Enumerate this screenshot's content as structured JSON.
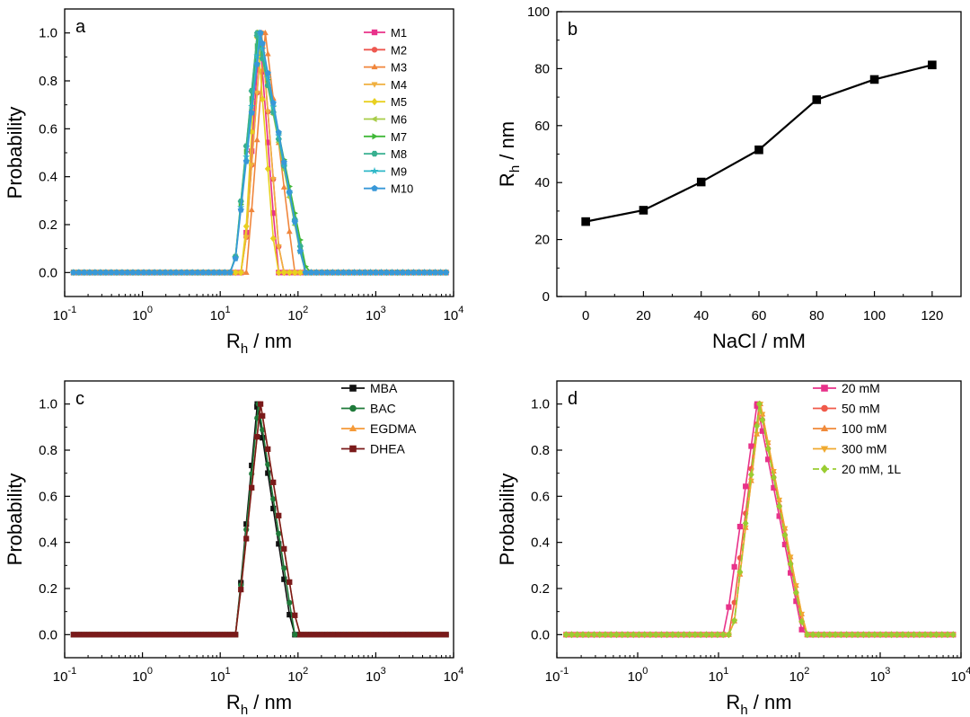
{
  "palette": {
    "M1": "#e8328a",
    "M2": "#ee5850",
    "M3": "#f0863c",
    "M4": "#f0b040",
    "M5": "#e8d020",
    "M6": "#a8cc48",
    "M7": "#40b838",
    "M8": "#38b090",
    "M9": "#30b8c8",
    "M10": "#3898d8",
    "MBA": "#111111",
    "BAC": "#1f7a3a",
    "EGDMA": "#f59a38",
    "DHEA": "#7a1a1a",
    "mM20": "#e8328a",
    "mM50": "#f05a4a",
    "mM100": "#f08a3a",
    "mM300": "#f0aa30",
    "mM20_1L": "#9acd32"
  },
  "chart_data": [
    {
      "id": "a",
      "panel_label": "a",
      "type": "line",
      "xscale": "log",
      "xlabel": "R",
      "xlabel_sub": "h",
      "xlabel_unit": " / nm",
      "ylabel": "Probability",
      "xlim": [
        0.1,
        10000
      ],
      "ylim": [
        -0.1,
        1.1
      ],
      "xticks": [
        0.1,
        1,
        10,
        100,
        1000,
        10000
      ],
      "xtick_labels": [
        [
          "10",
          "-1"
        ],
        [
          "10",
          "0"
        ],
        [
          "10",
          "1"
        ],
        [
          "10",
          "2"
        ],
        [
          "10",
          "3"
        ],
        [
          "10",
          "4"
        ]
      ],
      "yticks": [
        0,
        0.2,
        0.4,
        0.6,
        0.8,
        1.0
      ],
      "ytick_labels": [
        "0.0",
        "0.2",
        "0.4",
        "0.6",
        "0.8",
        "1.0"
      ],
      "legend_position": "top-right",
      "series": [
        {
          "name": "M1",
          "color_key": "M1",
          "marker": "square",
          "dist": {
            "lo": 20,
            "hi": 55,
            "peak": 32,
            "pv": 1.0
          }
        },
        {
          "name": "M2",
          "color_key": "M2",
          "marker": "circle",
          "dist": {
            "lo": 20,
            "hi": 60,
            "peak": 34,
            "pv": 1.0
          }
        },
        {
          "name": "M3",
          "color_key": "M3",
          "marker": "triangle-up",
          "dist": {
            "lo": 22,
            "hi": 90,
            "peak": 38,
            "pv": 1.0
          }
        },
        {
          "name": "M4",
          "color_key": "M4",
          "marker": "triangle-down",
          "dist": {
            "lo": 20,
            "hi": 60,
            "peak": 34,
            "pv": 1.0
          }
        },
        {
          "name": "M5",
          "color_key": "M5",
          "marker": "diamond",
          "dist": {
            "lo": 20,
            "hi": 52,
            "peak": 30,
            "pv": 1.0
          }
        },
        {
          "name": "M6",
          "color_key": "M6",
          "marker": "triangle-left",
          "dist": {
            "lo": 15,
            "hi": 120,
            "peak": 30,
            "pv": 1.0
          }
        },
        {
          "name": "M7",
          "color_key": "M7",
          "marker": "triangle-right",
          "dist": {
            "lo": 15,
            "hi": 130,
            "peak": 31,
            "pv": 1.0
          }
        },
        {
          "name": "M8",
          "color_key": "M8",
          "marker": "hexagon",
          "dist": {
            "lo": 15,
            "hi": 125,
            "peak": 30,
            "pv": 1.0
          }
        },
        {
          "name": "M9",
          "color_key": "M9",
          "marker": "star",
          "dist": {
            "lo": 15,
            "hi": 120,
            "peak": 32,
            "pv": 1.0
          }
        },
        {
          "name": "M10",
          "color_key": "M10",
          "marker": "pentagon",
          "dist": {
            "lo": 15,
            "hi": 120,
            "peak": 33,
            "pv": 1.0
          }
        }
      ]
    },
    {
      "id": "b",
      "panel_label": "b",
      "type": "line",
      "xscale": "linear",
      "xlabel": "NaCl / mM",
      "ylabel": "R",
      "ylabel_sub": "h",
      "ylabel_unit": " / nm",
      "xlim": [
        -10,
        130
      ],
      "ylim": [
        0,
        100
      ],
      "xticks": [
        0,
        20,
        40,
        60,
        80,
        100,
        120
      ],
      "xtick_labels": [
        "0",
        "20",
        "40",
        "60",
        "80",
        "100",
        "120"
      ],
      "yticks": [
        0,
        20,
        40,
        60,
        80,
        100
      ],
      "ytick_labels": [
        "0",
        "20",
        "40",
        "60",
        "80",
        "100"
      ],
      "series": [
        {
          "name": "",
          "color": "#000000",
          "marker": "square",
          "x": [
            0,
            20,
            40,
            60,
            80,
            100,
            120
          ],
          "y": [
            26.3,
            30.3,
            40.2,
            51.5,
            69.1,
            76.2,
            81.3
          ]
        }
      ]
    },
    {
      "id": "c",
      "panel_label": "c",
      "type": "line",
      "xscale": "log",
      "xlabel": "R",
      "xlabel_sub": "h",
      "xlabel_unit": " / nm",
      "ylabel": "Probability",
      "xlim": [
        0.1,
        10000
      ],
      "ylim": [
        -0.1,
        1.1
      ],
      "xticks": [
        0.1,
        1,
        10,
        100,
        1000,
        10000
      ],
      "xtick_labels": [
        [
          "10",
          "-1"
        ],
        [
          "10",
          "0"
        ],
        [
          "10",
          "1"
        ],
        [
          "10",
          "2"
        ],
        [
          "10",
          "3"
        ],
        [
          "10",
          "4"
        ]
      ],
      "yticks": [
        0,
        0.2,
        0.4,
        0.6,
        0.8,
        1.0
      ],
      "ytick_labels": [
        "0.0",
        "0.2",
        "0.4",
        "0.6",
        "0.8",
        "1.0"
      ],
      "legend_position": "top-right",
      "series": [
        {
          "name": "MBA",
          "color_key": "MBA",
          "marker": "square",
          "dist": {
            "lo": 16,
            "hi": 85,
            "peak": 30,
            "pv": 1.0
          }
        },
        {
          "name": "BAC",
          "color_key": "BAC",
          "marker": "circle",
          "dist": {
            "lo": 16,
            "hi": 90,
            "peak": 31,
            "pv": 1.0
          }
        },
        {
          "name": "EGDMA",
          "color_key": "EGDMA",
          "marker": "triangle-up",
          "dist": {
            "lo": 16,
            "hi": 100,
            "peak": 33,
            "pv": 1.0
          }
        },
        {
          "name": "DHEA",
          "color_key": "DHEA",
          "marker": "square",
          "dist": {
            "lo": 16,
            "hi": 100,
            "peak": 33,
            "pv": 1.0
          }
        }
      ]
    },
    {
      "id": "d",
      "panel_label": "d",
      "type": "line",
      "xscale": "log",
      "xlabel": "R",
      "xlabel_sub": "h",
      "xlabel_unit": " / nm",
      "ylabel": "Probability",
      "xlim": [
        0.1,
        10000
      ],
      "ylim": [
        -0.1,
        1.1
      ],
      "xticks": [
        0.1,
        1,
        10,
        100,
        1000,
        10000
      ],
      "xtick_labels": [
        [
          "10",
          "-1"
        ],
        [
          "10",
          "0"
        ],
        [
          "10",
          "1"
        ],
        [
          "10",
          "2"
        ],
        [
          "10",
          "3"
        ],
        [
          "10",
          "4"
        ]
      ],
      "yticks": [
        0,
        0.2,
        0.4,
        0.6,
        0.8,
        1.0
      ],
      "ytick_labels": [
        "0.0",
        "0.2",
        "0.4",
        "0.6",
        "0.8",
        "1.0"
      ],
      "legend_position": "top-right",
      "series": [
        {
          "name": "20 mM",
          "color_key": "mM20",
          "marker": "square",
          "dist": {
            "lo": 12,
            "hi": 110,
            "peak": 30,
            "pv": 1.0
          }
        },
        {
          "name": "50 mM",
          "color_key": "mM50",
          "marker": "circle",
          "dist": {
            "lo": 14,
            "hi": 115,
            "peak": 32,
            "pv": 1.0
          }
        },
        {
          "name": "100 mM",
          "color_key": "mM100",
          "marker": "triangle-up",
          "dist": {
            "lo": 15,
            "hi": 120,
            "peak": 33,
            "pv": 1.0
          }
        },
        {
          "name": "300 mM",
          "color_key": "mM300",
          "marker": "triangle-down",
          "dist": {
            "lo": 15,
            "hi": 120,
            "peak": 33,
            "pv": 1.0
          }
        },
        {
          "name": "20 mM, 1L",
          "color_key": "mM20_1L",
          "marker": "diamond",
          "dashed": true,
          "dist": {
            "lo": 15,
            "hi": 115,
            "peak": 32,
            "pv": 1.0
          }
        }
      ]
    }
  ]
}
